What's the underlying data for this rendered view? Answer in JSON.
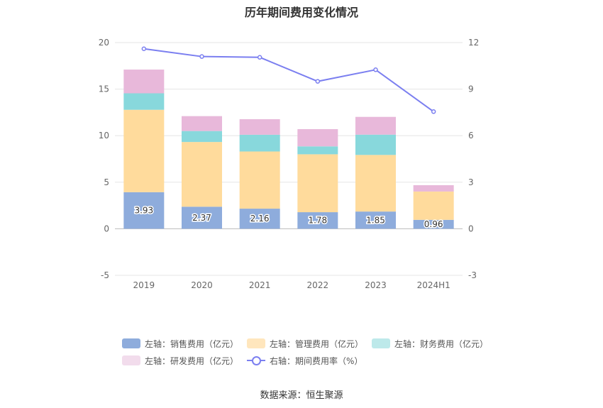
{
  "title": "历年期间费用变化情况",
  "source": "数据来源：恒生聚源",
  "chart_data": {
    "type": "bar",
    "stacked": true,
    "categories": [
      "2019",
      "2020",
      "2021",
      "2022",
      "2023",
      "2024H1"
    ],
    "left_axis": {
      "ylim": [
        -5,
        20
      ],
      "ticks": [
        -5,
        0,
        5,
        10,
        15,
        20
      ]
    },
    "right_axis": {
      "ylim": [
        -3,
        12
      ],
      "ticks": [
        -3,
        0,
        3,
        6,
        9,
        12
      ]
    },
    "grid": true,
    "legend_position": "bottom",
    "series": [
      {
        "name": "左轴：销售费用（亿元）",
        "axis": "left",
        "color": "#8eacdc",
        "values": [
          3.93,
          2.37,
          2.16,
          1.78,
          1.85,
          0.96
        ],
        "show_labels": true
      },
      {
        "name": "左轴：管理费用（亿元）",
        "axis": "left",
        "color": "#ffdb9c",
        "values": [
          8.85,
          6.95,
          6.14,
          6.22,
          6.08,
          3.04
        ]
      },
      {
        "name": "左轴：财务费用（亿元）",
        "axis": "left",
        "color": "#88d8dc",
        "values": [
          1.77,
          1.18,
          1.8,
          0.85,
          2.18,
          0.0
        ]
      },
      {
        "name": "左轴：研发费用（亿元）",
        "axis": "left",
        "color": "#e8b8da",
        "values": [
          2.55,
          1.6,
          1.67,
          1.85,
          1.91,
          0.68
        ]
      },
      {
        "name": "右轴：期间费用率（%）",
        "axis": "right",
        "type": "line",
        "color": "#7b7ff0",
        "values": [
          11.6,
          11.1,
          11.05,
          9.5,
          10.25,
          7.55
        ]
      }
    ]
  }
}
